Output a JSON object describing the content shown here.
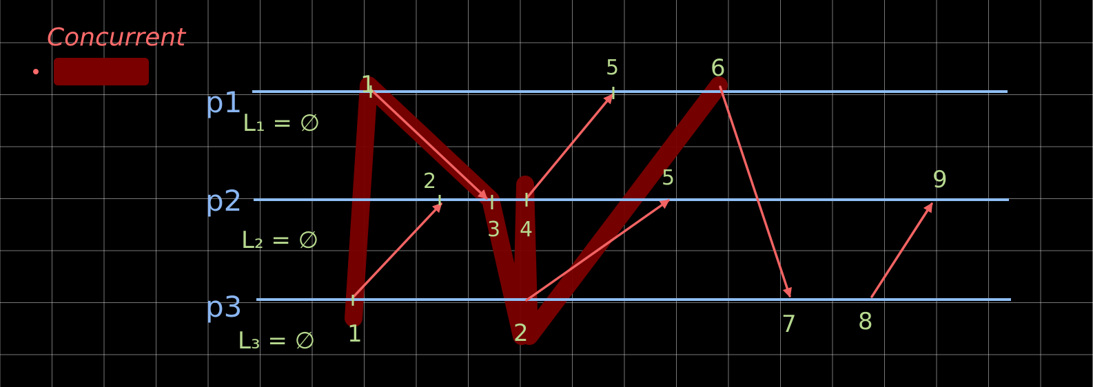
{
  "title": "Concurrent",
  "colors": {
    "background": "#000000",
    "grid": "#d8d8d8",
    "timeline": "#8fbef4",
    "arrow": "#f26363",
    "highlight": "#7a0000",
    "label_green": "#b7d98f",
    "label_blue": "#8ab6f2",
    "title": "#ff6b6b"
  },
  "processes": [
    {
      "name": "p1",
      "clock": "L₁ = ∅"
    },
    {
      "name": "p2",
      "clock": "L₂ = ∅"
    },
    {
      "name": "p3",
      "clock": "L₃ = ∅"
    }
  ],
  "events": [
    {
      "id": "e1",
      "process": "p3",
      "label": "1"
    },
    {
      "id": "e2",
      "process": "p3",
      "label": "2"
    },
    {
      "id": "e3",
      "process": "p2",
      "label": "2"
    },
    {
      "id": "e4",
      "process": "p2",
      "label": "3"
    },
    {
      "id": "e5",
      "process": "p2",
      "label": "4"
    },
    {
      "id": "e6",
      "process": "p1",
      "label": "1"
    },
    {
      "id": "e7",
      "process": "p1",
      "label": "5"
    },
    {
      "id": "e8",
      "process": "p2",
      "label": "5"
    },
    {
      "id": "e9",
      "process": "p1",
      "label": "6"
    },
    {
      "id": "e10",
      "process": "p3",
      "label": "7"
    },
    {
      "id": "e11",
      "process": "p3",
      "label": "8"
    },
    {
      "id": "e12",
      "process": "p2",
      "label": "9"
    }
  ],
  "messages": [
    {
      "from": "e6",
      "to": "e4"
    },
    {
      "from": "e1",
      "to": "e3"
    },
    {
      "from": "e5",
      "to": "e7"
    },
    {
      "from": "e2",
      "to": "e8"
    },
    {
      "from": "e9",
      "to": "e10"
    },
    {
      "from": "e11",
      "to": "e12"
    }
  ]
}
